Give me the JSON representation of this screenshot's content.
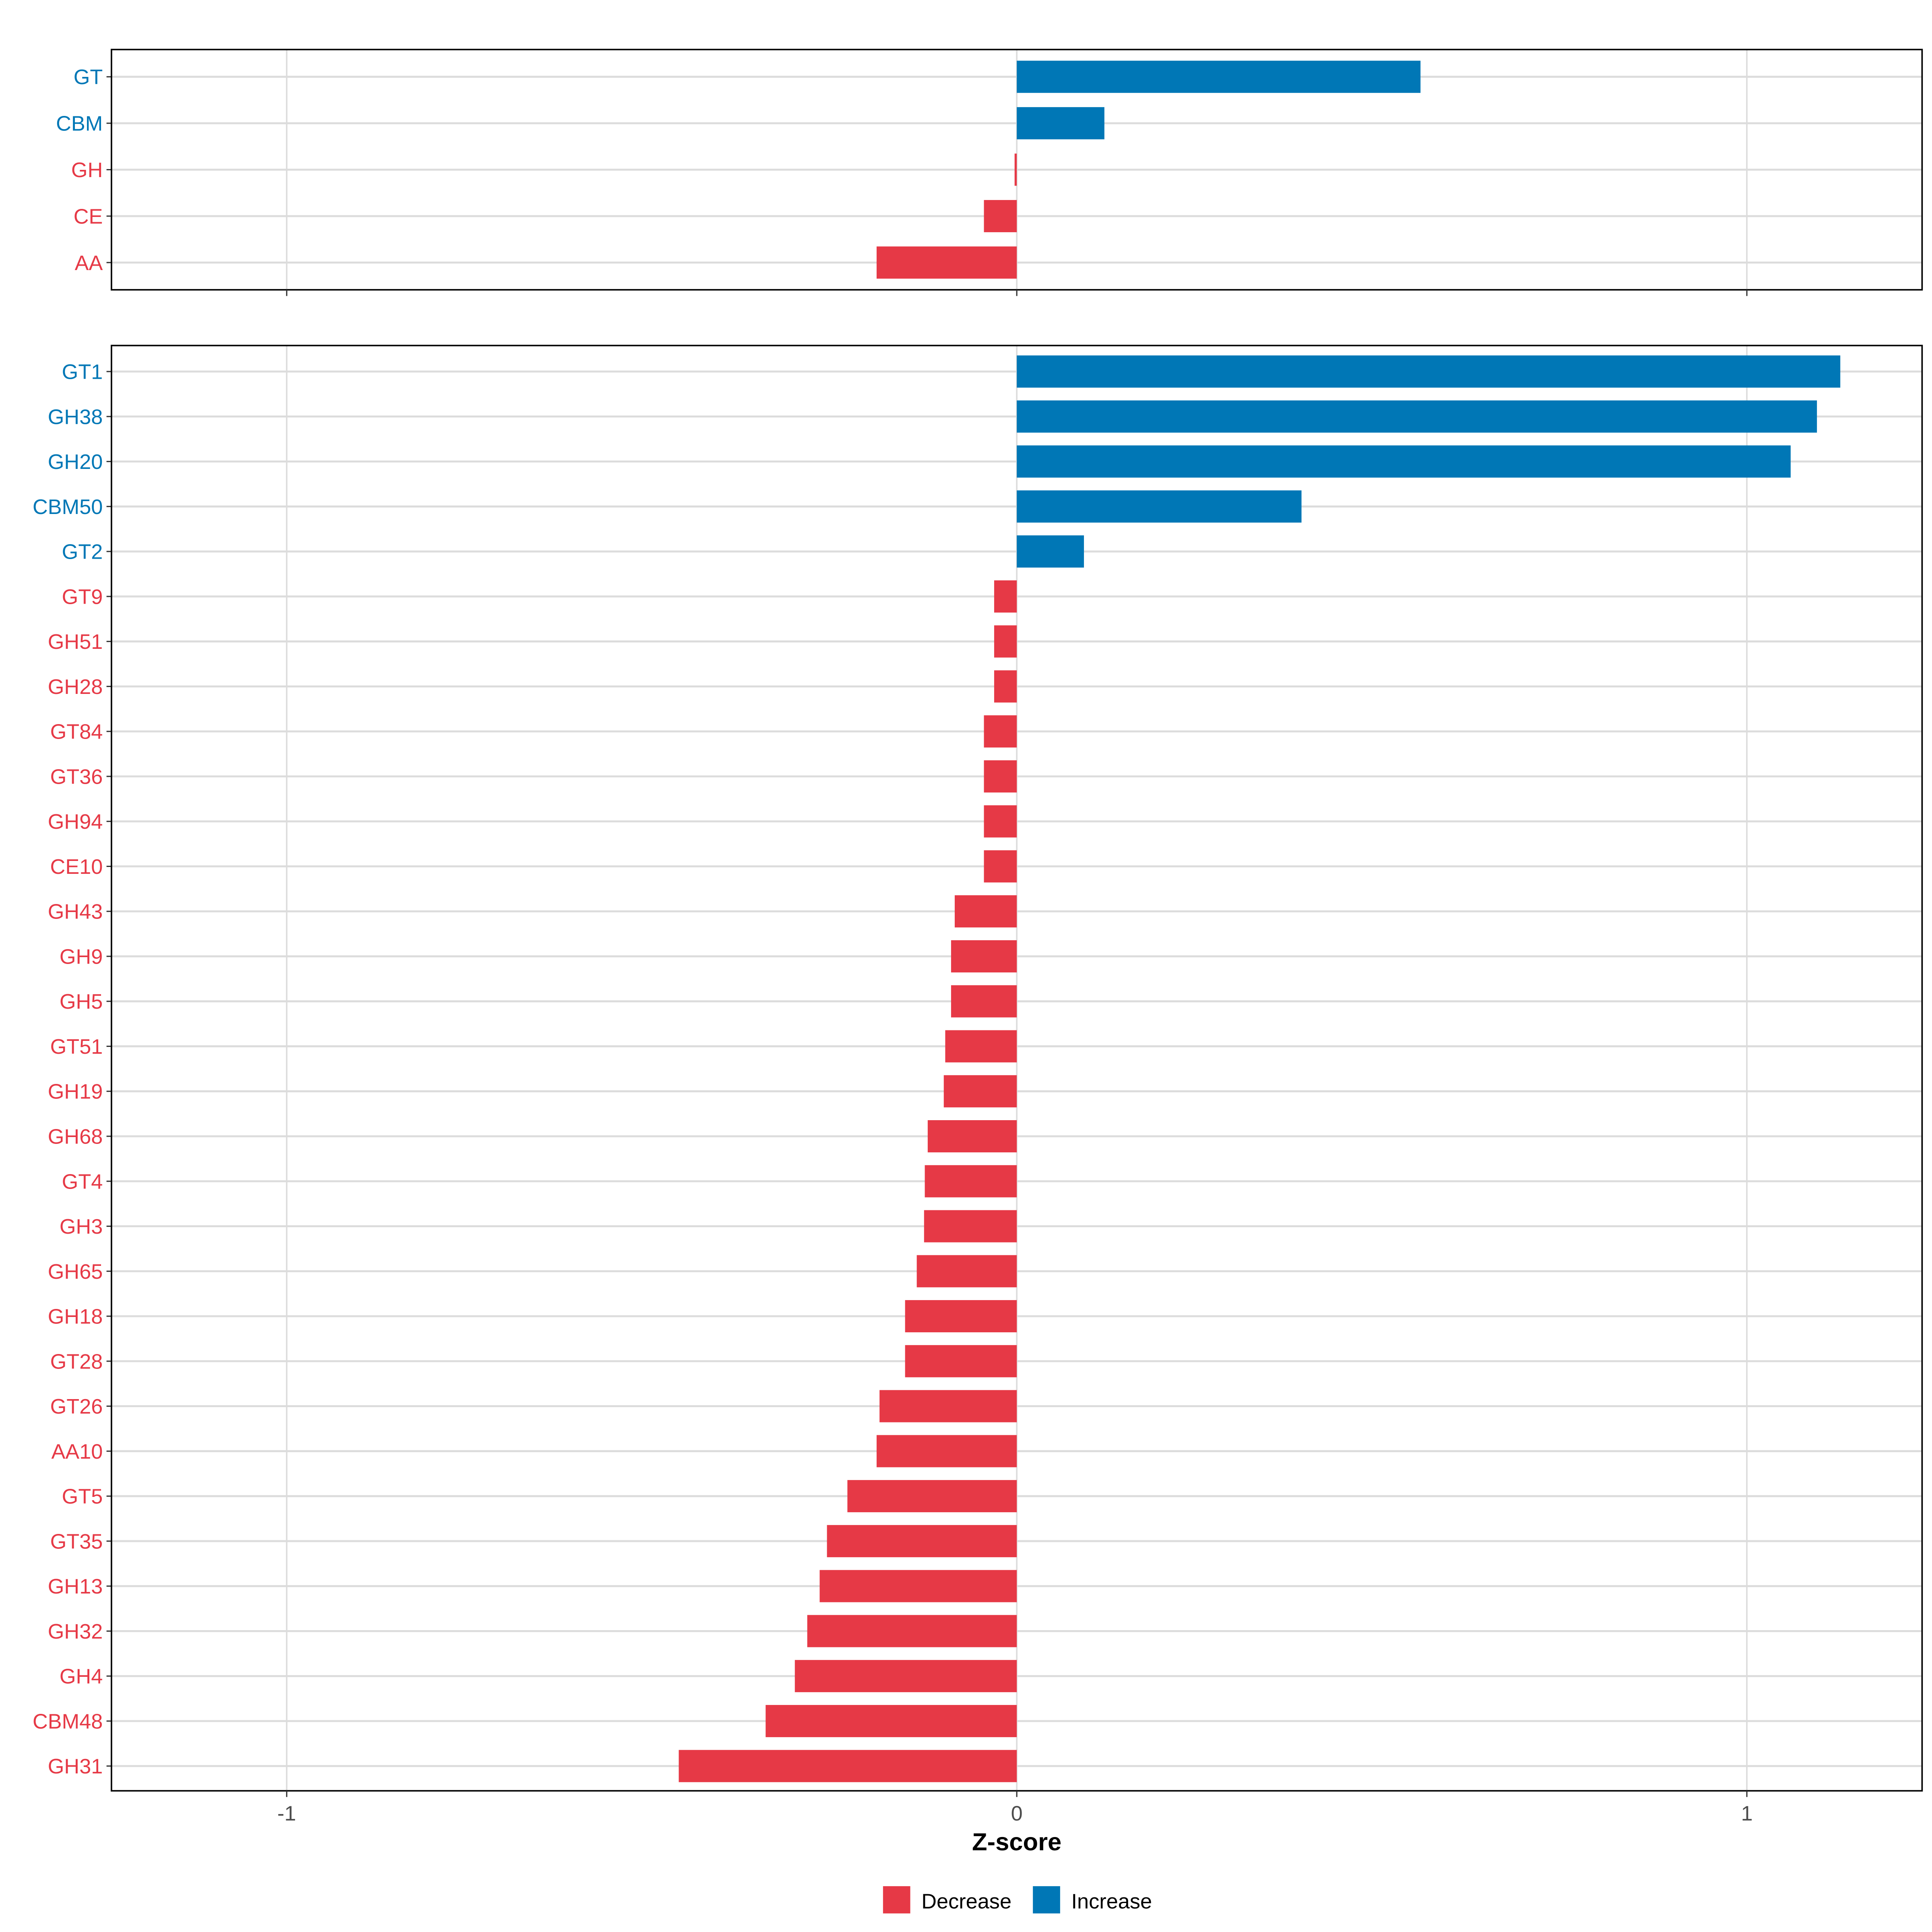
{
  "colors": {
    "Decrease": "#E63946",
    "Increase": "#0077B6"
  },
  "chart_data": [
    {
      "type": "bar",
      "orientation": "horizontal",
      "panel": "top",
      "categories": [
        "GT",
        "CBM",
        "GH",
        "CE",
        "AA"
      ],
      "values": [
        0.553,
        0.12,
        -0.003,
        -0.045,
        -0.192
      ],
      "groups": [
        "Increase",
        "Increase",
        "Decrease",
        "Decrease",
        "Decrease"
      ],
      "xlim": [
        -1.24,
        1.24
      ],
      "grid": true
    },
    {
      "type": "bar",
      "orientation": "horizontal",
      "panel": "bottom",
      "categories": [
        "GT1",
        "GH38",
        "GH20",
        "CBM50",
        "GT2",
        "GT9",
        "GH51",
        "GH28",
        "GT84",
        "GT36",
        "GH94",
        "CE10",
        "GH43",
        "GH9",
        "GH5",
        "GT51",
        "GH19",
        "GH68",
        "GT4",
        "GH3",
        "GH65",
        "GH18",
        "GT28",
        "GT26",
        "AA10",
        "GT5",
        "GT35",
        "GH13",
        "GH32",
        "GH4",
        "CBM48",
        "GH31"
      ],
      "values": [
        1.128,
        1.096,
        1.06,
        0.39,
        0.092,
        -0.031,
        -0.031,
        -0.031,
        -0.045,
        -0.045,
        -0.045,
        -0.045,
        -0.085,
        -0.09,
        -0.09,
        -0.098,
        -0.1,
        -0.122,
        -0.126,
        -0.127,
        -0.137,
        -0.153,
        -0.153,
        -0.188,
        -0.192,
        -0.232,
        -0.26,
        -0.27,
        -0.287,
        -0.304,
        -0.344,
        -0.463
      ],
      "groups": [
        "Increase",
        "Increase",
        "Increase",
        "Increase",
        "Increase",
        "Decrease",
        "Decrease",
        "Decrease",
        "Decrease",
        "Decrease",
        "Decrease",
        "Decrease",
        "Decrease",
        "Decrease",
        "Decrease",
        "Decrease",
        "Decrease",
        "Decrease",
        "Decrease",
        "Decrease",
        "Decrease",
        "Decrease",
        "Decrease",
        "Decrease",
        "Decrease",
        "Decrease",
        "Decrease",
        "Decrease",
        "Decrease",
        "Decrease",
        "Decrease",
        "Decrease"
      ],
      "xlim": [
        -1.24,
        1.24
      ],
      "xticks": [
        -1,
        0,
        1
      ],
      "xtick_labels": [
        "-1",
        "0",
        "1"
      ],
      "xlabel": "Z-score",
      "grid": true
    }
  ],
  "legend": {
    "placement": "bottom",
    "items": [
      {
        "label": "Decrease",
        "group": "Decrease"
      },
      {
        "label": "Increase",
        "group": "Increase"
      }
    ]
  }
}
